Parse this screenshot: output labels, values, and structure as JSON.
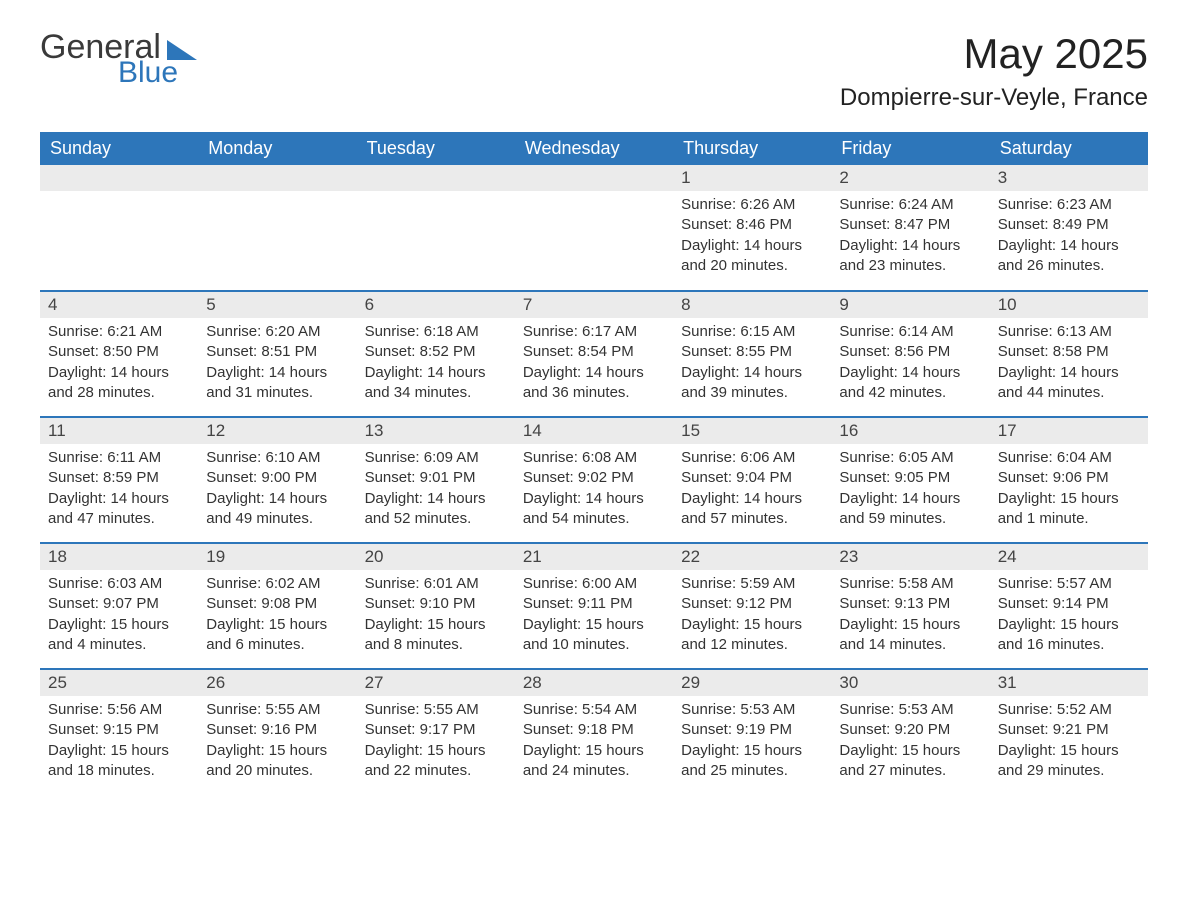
{
  "logo": {
    "text1": "General",
    "text2": "Blue"
  },
  "title": "May 2025",
  "location": "Dompierre-sur-Veyle, France",
  "colors": {
    "header_bg": "#2d76ba",
    "header_text": "#ffffff",
    "daynum_bg": "#ebebeb",
    "body_text": "#333333",
    "page_bg": "#ffffff"
  },
  "weekdays": [
    "Sunday",
    "Monday",
    "Tuesday",
    "Wednesday",
    "Thursday",
    "Friday",
    "Saturday"
  ],
  "weeks": [
    [
      null,
      null,
      null,
      null,
      {
        "n": "1",
        "sunrise": "6:26 AM",
        "sunset": "8:46 PM",
        "daylight": "14 hours and 20 minutes."
      },
      {
        "n": "2",
        "sunrise": "6:24 AM",
        "sunset": "8:47 PM",
        "daylight": "14 hours and 23 minutes."
      },
      {
        "n": "3",
        "sunrise": "6:23 AM",
        "sunset": "8:49 PM",
        "daylight": "14 hours and 26 minutes."
      }
    ],
    [
      {
        "n": "4",
        "sunrise": "6:21 AM",
        "sunset": "8:50 PM",
        "daylight": "14 hours and 28 minutes."
      },
      {
        "n": "5",
        "sunrise": "6:20 AM",
        "sunset": "8:51 PM",
        "daylight": "14 hours and 31 minutes."
      },
      {
        "n": "6",
        "sunrise": "6:18 AM",
        "sunset": "8:52 PM",
        "daylight": "14 hours and 34 minutes."
      },
      {
        "n": "7",
        "sunrise": "6:17 AM",
        "sunset": "8:54 PM",
        "daylight": "14 hours and 36 minutes."
      },
      {
        "n": "8",
        "sunrise": "6:15 AM",
        "sunset": "8:55 PM",
        "daylight": "14 hours and 39 minutes."
      },
      {
        "n": "9",
        "sunrise": "6:14 AM",
        "sunset": "8:56 PM",
        "daylight": "14 hours and 42 minutes."
      },
      {
        "n": "10",
        "sunrise": "6:13 AM",
        "sunset": "8:58 PM",
        "daylight": "14 hours and 44 minutes."
      }
    ],
    [
      {
        "n": "11",
        "sunrise": "6:11 AM",
        "sunset": "8:59 PM",
        "daylight": "14 hours and 47 minutes."
      },
      {
        "n": "12",
        "sunrise": "6:10 AM",
        "sunset": "9:00 PM",
        "daylight": "14 hours and 49 minutes."
      },
      {
        "n": "13",
        "sunrise": "6:09 AM",
        "sunset": "9:01 PM",
        "daylight": "14 hours and 52 minutes."
      },
      {
        "n": "14",
        "sunrise": "6:08 AM",
        "sunset": "9:02 PM",
        "daylight": "14 hours and 54 minutes."
      },
      {
        "n": "15",
        "sunrise": "6:06 AM",
        "sunset": "9:04 PM",
        "daylight": "14 hours and 57 minutes."
      },
      {
        "n": "16",
        "sunrise": "6:05 AM",
        "sunset": "9:05 PM",
        "daylight": "14 hours and 59 minutes."
      },
      {
        "n": "17",
        "sunrise": "6:04 AM",
        "sunset": "9:06 PM",
        "daylight": "15 hours and 1 minute."
      }
    ],
    [
      {
        "n": "18",
        "sunrise": "6:03 AM",
        "sunset": "9:07 PM",
        "daylight": "15 hours and 4 minutes."
      },
      {
        "n": "19",
        "sunrise": "6:02 AM",
        "sunset": "9:08 PM",
        "daylight": "15 hours and 6 minutes."
      },
      {
        "n": "20",
        "sunrise": "6:01 AM",
        "sunset": "9:10 PM",
        "daylight": "15 hours and 8 minutes."
      },
      {
        "n": "21",
        "sunrise": "6:00 AM",
        "sunset": "9:11 PM",
        "daylight": "15 hours and 10 minutes."
      },
      {
        "n": "22",
        "sunrise": "5:59 AM",
        "sunset": "9:12 PM",
        "daylight": "15 hours and 12 minutes."
      },
      {
        "n": "23",
        "sunrise": "5:58 AM",
        "sunset": "9:13 PM",
        "daylight": "15 hours and 14 minutes."
      },
      {
        "n": "24",
        "sunrise": "5:57 AM",
        "sunset": "9:14 PM",
        "daylight": "15 hours and 16 minutes."
      }
    ],
    [
      {
        "n": "25",
        "sunrise": "5:56 AM",
        "sunset": "9:15 PM",
        "daylight": "15 hours and 18 minutes."
      },
      {
        "n": "26",
        "sunrise": "5:55 AM",
        "sunset": "9:16 PM",
        "daylight": "15 hours and 20 minutes."
      },
      {
        "n": "27",
        "sunrise": "5:55 AM",
        "sunset": "9:17 PM",
        "daylight": "15 hours and 22 minutes."
      },
      {
        "n": "28",
        "sunrise": "5:54 AM",
        "sunset": "9:18 PM",
        "daylight": "15 hours and 24 minutes."
      },
      {
        "n": "29",
        "sunrise": "5:53 AM",
        "sunset": "9:19 PM",
        "daylight": "15 hours and 25 minutes."
      },
      {
        "n": "30",
        "sunrise": "5:53 AM",
        "sunset": "9:20 PM",
        "daylight": "15 hours and 27 minutes."
      },
      {
        "n": "31",
        "sunrise": "5:52 AM",
        "sunset": "9:21 PM",
        "daylight": "15 hours and 29 minutes."
      }
    ]
  ],
  "labels": {
    "sunrise": "Sunrise:",
    "sunset": "Sunset:",
    "daylight": "Daylight:"
  }
}
